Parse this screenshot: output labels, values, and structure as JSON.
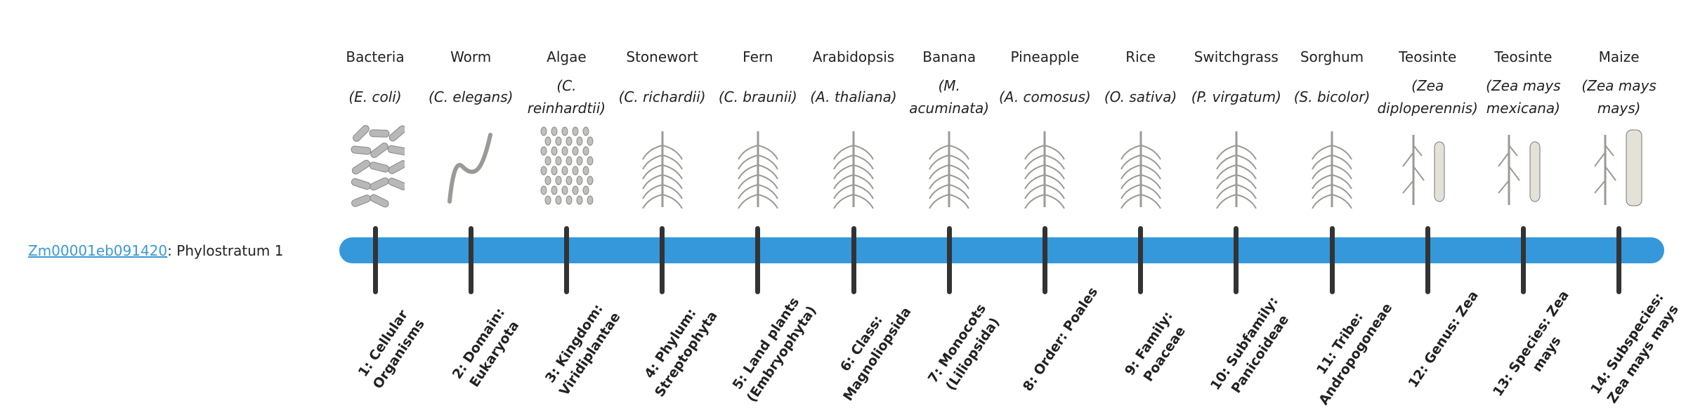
{
  "gene": {
    "id": "Zm00001eb091420",
    "suffix": ": Phylostratum 1"
  },
  "colors": {
    "bar": "#3498db",
    "tick": "#333333",
    "link": "#3a98d8"
  },
  "strata": [
    {
      "common": "Bacteria",
      "scientific": "(E. coli)",
      "icon": "bacteria-image",
      "label": "1: Cellular Organisms"
    },
    {
      "common": "Worm",
      "scientific": "(C. elegans)",
      "icon": "worm-image",
      "label": "2: Domain: Eukaryota"
    },
    {
      "common": "Algae",
      "scientific": "(C. reinhardtii)",
      "icon": "algae-image",
      "label": "3: Kingdom: Viridiplantae"
    },
    {
      "common": "Stonewort",
      "scientific": "(C. richardii)",
      "icon": "stonewort-image",
      "label": "4: Phylum: Streptophyta"
    },
    {
      "common": "Fern",
      "scientific": "(C. braunii)",
      "icon": "fern-image",
      "label": "5: Land plants (Embryophyta)"
    },
    {
      "common": "Arabidopsis",
      "scientific": "(A. thaliana)",
      "icon": "arabidopsis-image",
      "label": "6: Class: Magnoliopsida"
    },
    {
      "common": "Banana",
      "scientific": "(M. acuminata)",
      "icon": "banana-image",
      "label": "7: Monocots (Liliopsida)"
    },
    {
      "common": "Pineapple",
      "scientific": "(A. comosus)",
      "icon": "pineapple-image",
      "label": "8: Order: Poales"
    },
    {
      "common": "Rice",
      "scientific": "(O. sativa)",
      "icon": "rice-image",
      "label": "9: Family: Poaceae"
    },
    {
      "common": "Switchgrass",
      "scientific": "(P. virgatum)",
      "icon": "switchgrass-image",
      "label": "10: Subfamily: Panicoideae"
    },
    {
      "common": "Sorghum",
      "scientific": "(S. bicolor)",
      "icon": "sorghum-image",
      "label": "11: Tribe: Andropogoneae"
    },
    {
      "common": "Teosinte",
      "scientific": "(Zea diploperennis)",
      "icon": "teosinte-image",
      "label": "12: Genus: Zea"
    },
    {
      "common": "Teosinte",
      "scientific": "(Zea mays mexicana)",
      "icon": "teosinte-image",
      "label": "13: Species: Zea mays"
    },
    {
      "common": "Maize",
      "scientific": "(Zea mays mays)",
      "icon": "maize-image",
      "label": "14: Subspecies: Zea mays mays"
    }
  ]
}
